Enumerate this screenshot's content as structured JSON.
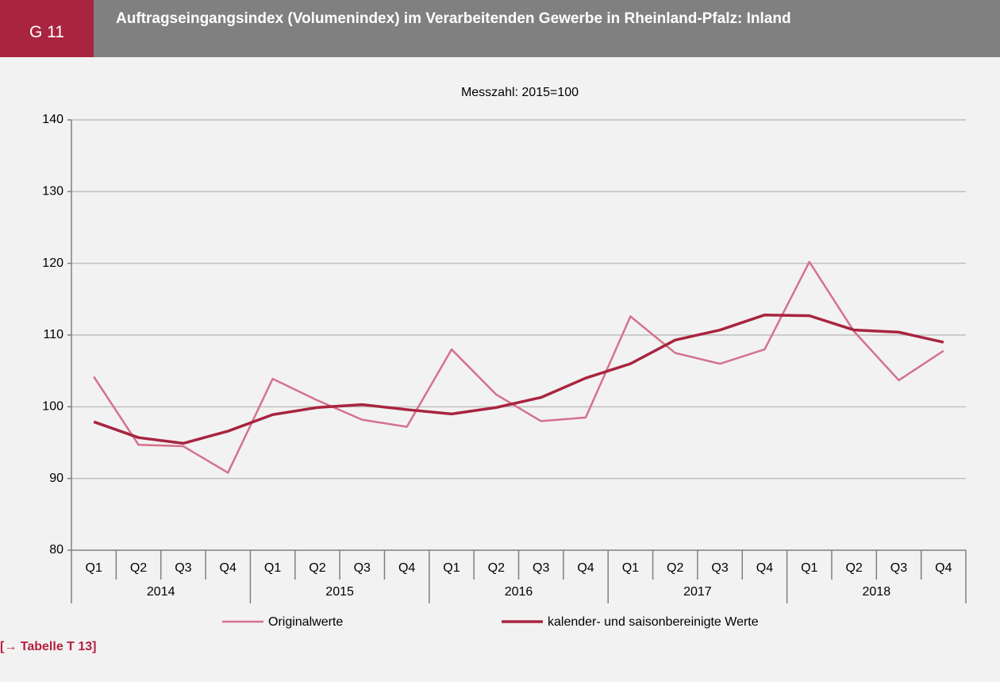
{
  "header": {
    "code": "G 11",
    "title": "Auftragseingangsindex (Volumenindex) im  Verarbeitenden Gewerbe  in Rheinland-Pfalz: Inland"
  },
  "link": "[→ Tabelle T 13]",
  "chart_data": {
    "type": "line",
    "subtitle": "Messzahl: 2015=100",
    "categories": [
      "Q1",
      "Q2",
      "Q3",
      "Q4",
      "Q1",
      "Q2",
      "Q3",
      "Q4",
      "Q1",
      "Q2",
      "Q3",
      "Q4",
      "Q1",
      "Q2",
      "Q3",
      "Q4",
      "Q1",
      "Q2",
      "Q3",
      "Q4"
    ],
    "years": [
      "2014",
      "2015",
      "2016",
      "2017",
      "2018"
    ],
    "series": [
      {
        "name": "Originalwerte",
        "color": "#d4728e",
        "values": [
          104.2,
          94.7,
          94.5,
          90.8,
          103.9,
          100.9,
          98.2,
          97.2,
          108.0,
          101.7,
          98.0,
          98.5,
          112.6,
          107.5,
          106.0,
          108.0,
          120.2,
          110.5,
          103.7,
          107.8
        ]
      },
      {
        "name": "kalender- und saisonbereinigte Werte",
        "color": "#a8243f",
        "values": [
          97.9,
          95.7,
          94.9,
          96.6,
          98.9,
          99.9,
          100.3,
          99.6,
          99.0,
          99.9,
          101.3,
          104.0,
          106.0,
          109.3,
          110.7,
          112.8,
          112.7,
          110.7,
          110.4,
          109.0
        ]
      }
    ],
    "ylim": [
      80,
      140
    ],
    "yticks": [
      80,
      90,
      100,
      110,
      120,
      130,
      140
    ],
    "grid": true,
    "legend": "bottom"
  }
}
